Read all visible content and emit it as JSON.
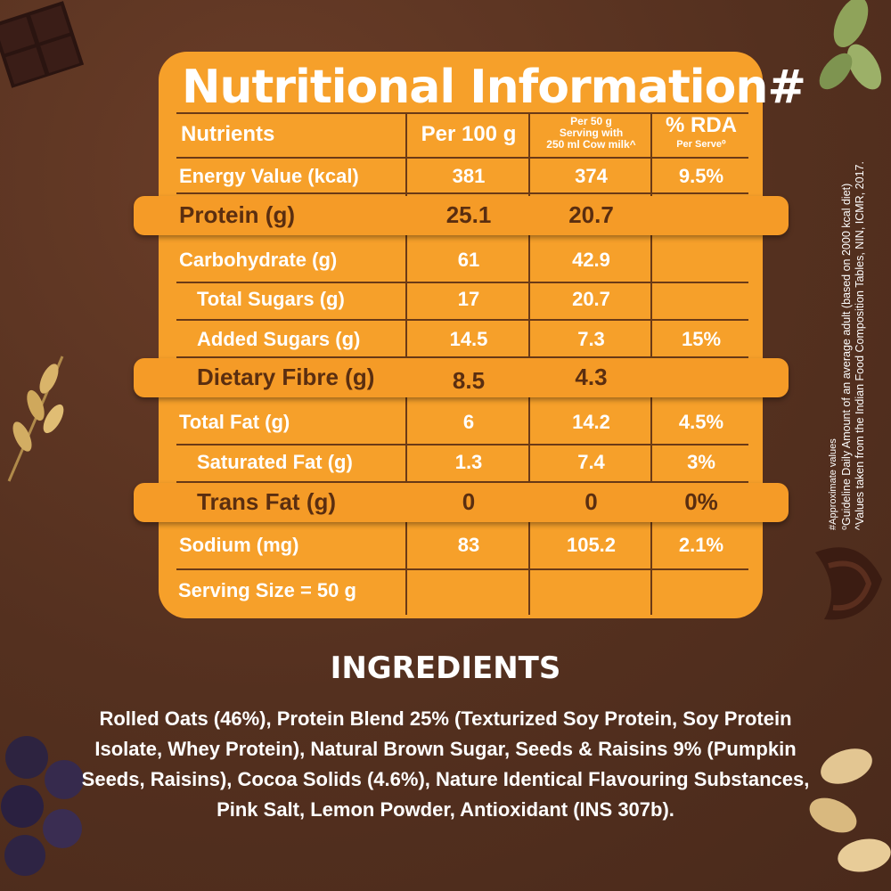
{
  "title": "Nutritional Information#",
  "columns": {
    "nutrients": "Nutrients",
    "per100": "Per 100 g",
    "per50_line1": "Per 50 g",
    "per50_line2": "Serving with",
    "per50_line3": "250 ml Cow milk^",
    "rda": "% RDA",
    "rda_sub": "Per Serve⁰"
  },
  "rows": [
    {
      "name": "Energy Value (kcal)",
      "per100": "381",
      "per50": "374",
      "rda": "9.5%"
    },
    {
      "name": "Protein (g)",
      "per100": "25.1",
      "per50": "20.7",
      "rda": ""
    },
    {
      "name": "Carbohydrate (g)",
      "per100": "61",
      "per50": "42.9",
      "rda": ""
    },
    {
      "name": "Total Sugars (g)",
      "per100": "17",
      "per50": "20.7",
      "rda": ""
    },
    {
      "name": "Added Sugars (g)",
      "per100": "14.5",
      "per50": "7.3",
      "rda": "15%"
    },
    {
      "name": "Dietary Fibre (g)",
      "per100": "8.5",
      "per50": "4.3",
      "rda": ""
    },
    {
      "name": "Total Fat (g)",
      "per100": "6",
      "per50": "14.2",
      "rda": "4.5%"
    },
    {
      "name": "Saturated Fat (g)",
      "per100": "1.3",
      "per50": "7.4",
      "rda": "3%"
    },
    {
      "name": "Trans Fat (g)",
      "per100": "0",
      "per50": "0",
      "rda": "0%"
    },
    {
      "name": "Sodium (mg)",
      "per100": "83",
      "per50": "105.2",
      "rda": "2.1%"
    }
  ],
  "serving_size": "Serving Size = 50 g",
  "footnotes": [
    "#Approximate values",
    "⁰Guideline Daily Amount of an average adult (based on 2000 kcal diet)",
    "^Values taken from the Indian Food Composition Tables, NIN, ICMR, 2017."
  ],
  "ingredients_title": "INGREDIENTS",
  "ingredients_text": "Rolled Oats (46%), Protein Blend 25% (Texturized Soy Protein, Soy Protein Isolate, Whey Protein), Natural Brown Sugar, Seeds & Raisins 9% (Pumpkin Seeds, Raisins), Cocoa Solids (4.6%), Nature Identical Flavouring Substances, Pink Salt, Lemon Powder, Antioxidant (INS 307b).",
  "colors": {
    "background": "#5a3322",
    "card": "#f6a02a",
    "lines": "#6b3a16",
    "highlight_text": "#5a2e10"
  }
}
